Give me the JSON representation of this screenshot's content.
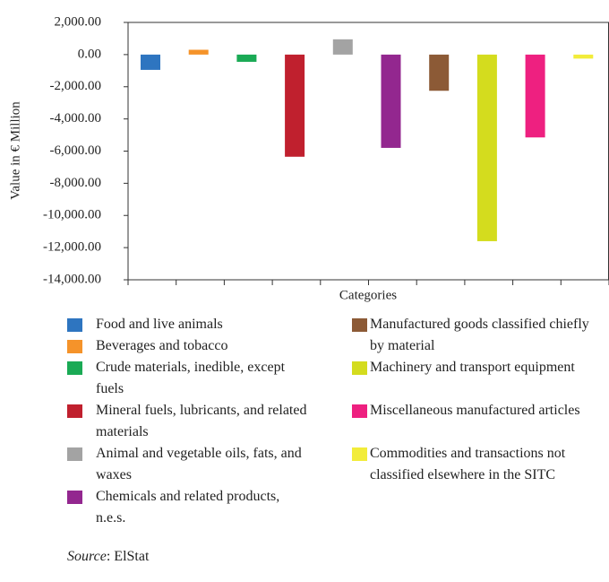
{
  "chart_data": {
    "type": "bar",
    "y_label": "Value in € Million",
    "x_label": "Categories",
    "ylim": [
      -14000,
      2000
    ],
    "yticks": [
      {
        "value": 2000,
        "label": "2,000.00"
      },
      {
        "value": 0,
        "label": "0.00"
      },
      {
        "value": -2000,
        "label": "-2,000.00"
      },
      {
        "value": -4000,
        "label": "-4,000.00"
      },
      {
        "value": -6000,
        "label": "-6,000.00"
      },
      {
        "value": -8000,
        "label": "-8,000.00"
      },
      {
        "value": -10000,
        "label": "-10,000.00"
      },
      {
        "value": -12000,
        "label": "-12,000.00"
      },
      {
        "value": -14000,
        "label": "-14,000.00"
      }
    ],
    "series": [
      {
        "name": "Food and live animals",
        "color": "#2e75c0",
        "values": [
          -950
        ]
      },
      {
        "name": "Beverages and tobacco",
        "color": "#f5932a",
        "values": [
          300
        ]
      },
      {
        "name": "Crude materials, inedible, except fuels",
        "color": "#1aaa55",
        "values": [
          -450
        ]
      },
      {
        "name": "Mineral fuels, lubricants, and related materials",
        "color": "#c0202e",
        "values": [
          -6350
        ]
      },
      {
        "name": "Animal and vegetable oils, fats, and waxes",
        "color": "#a3a3a3",
        "values": [
          950
        ]
      },
      {
        "name": "Chemicals and related products, n.e.s.",
        "color": "#93278f",
        "values": [
          -5800
        ]
      },
      {
        "name": "Manufactured goods classified chiefly by material",
        "color": "#8c5a36",
        "values": [
          -2250
        ]
      },
      {
        "name": "Machinery and transport equipment",
        "color": "#d4dc1e",
        "values": [
          -11600
        ]
      },
      {
        "name": "Miscellaneous manufactured articles",
        "color": "#ee2080",
        "values": [
          -5150
        ]
      },
      {
        "name": "Commodities and transactions not classified elsewhere in the SITC",
        "color": "#f2ec3a",
        "values": [
          -250
        ]
      }
    ],
    "source_label": "Source",
    "source": ": ElStat"
  }
}
